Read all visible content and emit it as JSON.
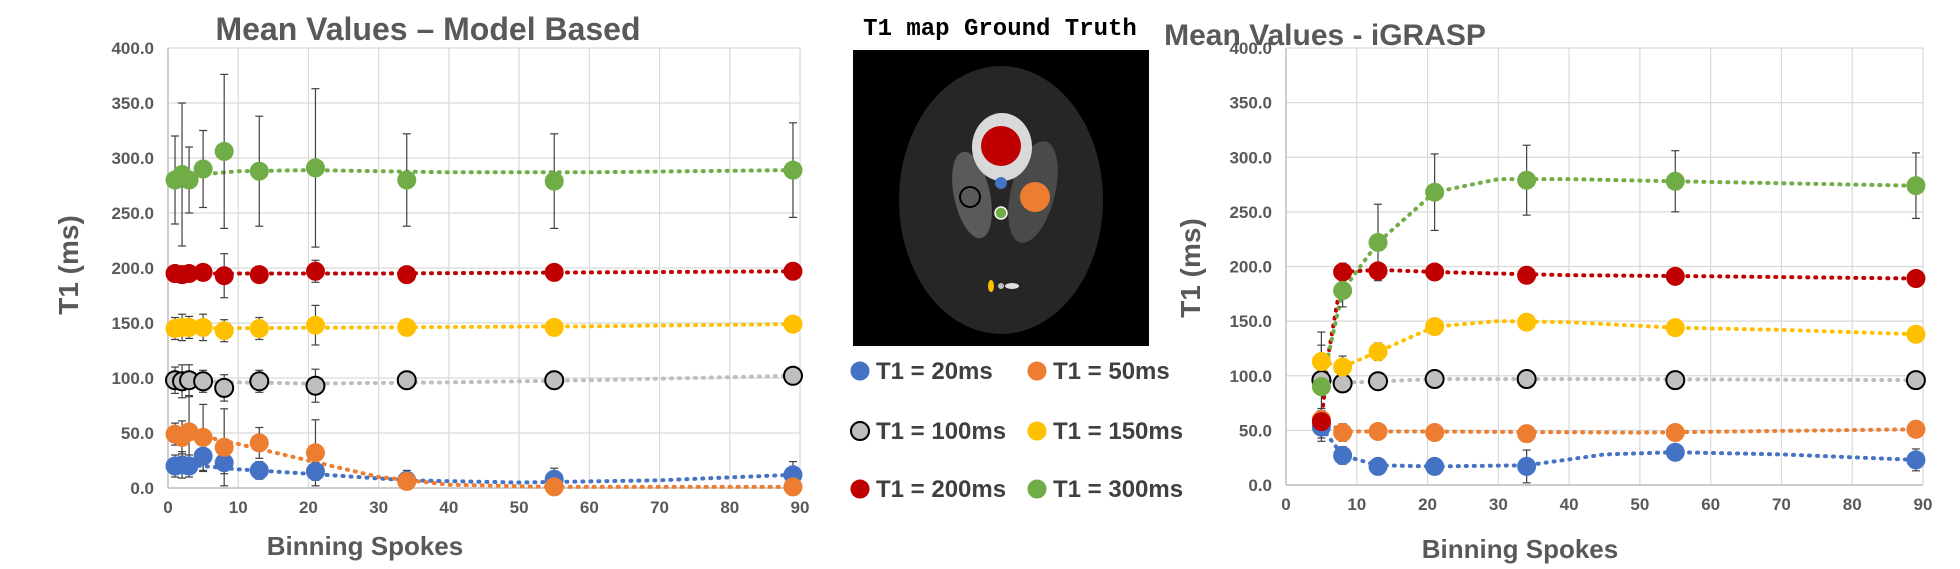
{
  "chart_data": [
    {
      "type": "scatter",
      "title": "Mean Values – Model Based",
      "xlabel": "Binning Spokes",
      "ylabel": "T1 (ms)",
      "xlim": [
        0,
        90
      ],
      "ylim": [
        0,
        400
      ],
      "xticks": [
        "0",
        "10",
        "20",
        "30",
        "40",
        "50",
        "60",
        "70",
        "80",
        "90"
      ],
      "yticks": [
        "0.0",
        "50.0",
        "100.0",
        "150.0",
        "200.0",
        "250.0",
        "300.0",
        "350.0",
        "400.0"
      ],
      "grid": true,
      "series": [
        {
          "name": "T1 = 20ms",
          "color": "#4472C4",
          "x": [
            1,
            2,
            3,
            5,
            8,
            13,
            21,
            34,
            55,
            89
          ],
          "y": [
            20,
            21,
            20,
            29,
            23,
            16,
            15,
            7,
            8,
            12
          ],
          "err": [
            10,
            12,
            10,
            14,
            10,
            8,
            8,
            5,
            10,
            12
          ],
          "trend": [
            [
              1,
              22
            ],
            [
              5,
              20
            ],
            [
              10,
              17
            ],
            [
              20,
              13
            ],
            [
              34,
              7
            ],
            [
              50,
              5
            ],
            [
              70,
              7
            ],
            [
              89,
              12
            ]
          ]
        },
        {
          "name": "T1 = 50ms",
          "color": "#ED7D31",
          "x": [
            1,
            2,
            3,
            5,
            8,
            13,
            21,
            34,
            55,
            89
          ],
          "y": [
            49,
            46,
            51,
            46,
            37,
            41,
            32,
            6,
            1,
            1
          ],
          "err": [
            10,
            15,
            32,
            30,
            35,
            14,
            30,
            10,
            4,
            4
          ],
          "trend": [
            [
              1,
              50
            ],
            [
              5,
              47
            ],
            [
              10,
              40
            ],
            [
              20,
              25
            ],
            [
              30,
              10
            ],
            [
              40,
              3
            ],
            [
              55,
              1
            ],
            [
              89,
              1
            ]
          ]
        },
        {
          "name": "T1 = 100ms",
          "color": "#BFBFBF",
          "x": [
            1,
            2,
            3,
            5,
            8,
            13,
            21,
            34,
            55,
            89
          ],
          "y": [
            98,
            97,
            98,
            97,
            91,
            97,
            93,
            98,
            98,
            102
          ],
          "err": [
            12,
            15,
            14,
            10,
            12,
            10,
            15,
            8,
            8,
            6
          ],
          "trend": [
            [
              1,
              98
            ],
            [
              10,
              96
            ],
            [
              20,
              95
            ],
            [
              40,
              96
            ],
            [
              60,
              98
            ],
            [
              89,
              102
            ]
          ]
        },
        {
          "name": "T1 = 150ms",
          "color": "#FFC000",
          "x": [
            1,
            2,
            3,
            5,
            8,
            13,
            21,
            34,
            55,
            89
          ],
          "y": [
            145,
            146,
            146,
            146,
            143,
            145,
            148,
            146,
            146,
            149
          ],
          "err": [
            10,
            12,
            10,
            12,
            10,
            10,
            18,
            6,
            5,
            5
          ],
          "trend": [
            [
              1,
              145
            ],
            [
              30,
              146
            ],
            [
              60,
              147
            ],
            [
              89,
              149
            ]
          ]
        },
        {
          "name": "T1 = 200ms",
          "color": "#C00000",
          "x": [
            1,
            2,
            3,
            5,
            8,
            13,
            21,
            34,
            55,
            89
          ],
          "y": [
            195,
            194,
            195,
            196,
            193,
            194,
            197,
            194,
            196,
            197
          ],
          "err": [
            5,
            5,
            5,
            5,
            20,
            5,
            10,
            5,
            4,
            4
          ],
          "trend": [
            [
              1,
              195
            ],
            [
              30,
              195
            ],
            [
              60,
              196
            ],
            [
              89,
              197
            ]
          ]
        },
        {
          "name": "T1 = 300ms",
          "color": "#70AD47",
          "x": [
            1,
            2,
            3,
            5,
            8,
            13,
            21,
            34,
            55,
            89
          ],
          "y": [
            280,
            285,
            280,
            290,
            306,
            288,
            291,
            280,
            279,
            289
          ],
          "err": [
            40,
            65,
            30,
            35,
            70,
            50,
            72,
            42,
            43,
            43
          ],
          "trend": [
            [
              1,
              283
            ],
            [
              10,
              288
            ],
            [
              20,
              289
            ],
            [
              40,
              287
            ],
            [
              60,
              287
            ],
            [
              89,
              289
            ]
          ]
        }
      ]
    },
    {
      "type": "scatter",
      "title": "Mean Values - iGRASP",
      "xlabel": "Binning Spokes",
      "ylabel": "T1 (ms)",
      "xlim": [
        0,
        90
      ],
      "ylim": [
        0,
        400
      ],
      "xticks": [
        "0",
        "10",
        "20",
        "30",
        "40",
        "50",
        "60",
        "70",
        "80",
        "90"
      ],
      "yticks": [
        "0.0",
        "50.0",
        "100.0",
        "150.0",
        "200.0",
        "250.0",
        "300.0",
        "350.0",
        "400.0"
      ],
      "grid": true,
      "series": [
        {
          "name": "T1 = 20ms",
          "color": "#4472C4",
          "x": [
            5,
            8,
            13,
            21,
            34,
            55,
            89
          ],
          "y": [
            53,
            27,
            17,
            17,
            17,
            30,
            23
          ],
          "err": [
            10,
            8,
            6,
            7,
            15,
            5,
            10
          ],
          "trend": [
            [
              5,
              53
            ],
            [
              8,
              27
            ],
            [
              13,
              18
            ],
            [
              21,
              17
            ],
            [
              34,
              18
            ],
            [
              45,
              28
            ],
            [
              55,
              30
            ],
            [
              70,
              28
            ],
            [
              89,
              23
            ]
          ]
        },
        {
          "name": "T1 = 50ms",
          "color": "#ED7D31",
          "x": [
            5,
            8,
            13,
            21,
            34,
            55,
            89
          ],
          "y": [
            60,
            48,
            49,
            48,
            47,
            48,
            51
          ],
          "err": [
            10,
            8,
            5,
            5,
            5,
            4,
            4
          ],
          "trend": [
            [
              5,
              60
            ],
            [
              8,
              49
            ],
            [
              20,
              49
            ],
            [
              50,
              48
            ],
            [
              89,
              51
            ]
          ]
        },
        {
          "name": "T1 = 100ms",
          "color": "#BFBFBF",
          "x": [
            5,
            8,
            13,
            21,
            34,
            55,
            89
          ],
          "y": [
            96,
            93,
            95,
            97,
            97,
            96,
            96
          ],
          "err": [
            12,
            8,
            6,
            5,
            5,
            4,
            4
          ],
          "trend": [
            [
              5,
              96
            ],
            [
              10,
              94
            ],
            [
              21,
              97
            ],
            [
              40,
              97
            ],
            [
              89,
              96
            ]
          ]
        },
        {
          "name": "T1 = 150ms",
          "color": "#FFC000",
          "x": [
            5,
            8,
            13,
            21,
            34,
            55,
            89
          ],
          "y": [
            113,
            108,
            122,
            145,
            149,
            144,
            138
          ],
          "err": [
            15,
            10,
            8,
            6,
            5,
            5,
            6
          ],
          "trend": [
            [
              5,
              113
            ],
            [
              8,
              108
            ],
            [
              13,
              122
            ],
            [
              21,
              145
            ],
            [
              30,
              150
            ],
            [
              40,
              149
            ],
            [
              55,
              144
            ],
            [
              70,
              142
            ],
            [
              89,
              138
            ]
          ]
        },
        {
          "name": "T1 = 200ms",
          "color": "#C00000",
          "x": [
            5,
            8,
            13,
            21,
            34,
            55,
            89
          ],
          "y": [
            58,
            195,
            196,
            195,
            192,
            191,
            189
          ],
          "err": [
            10,
            8,
            5,
            5,
            5,
            4,
            4
          ],
          "trend": [
            [
              5,
              58
            ],
            [
              6,
              120
            ],
            [
              8,
              195
            ],
            [
              13,
              197
            ],
            [
              21,
              195
            ],
            [
              40,
              192
            ],
            [
              60,
              191
            ],
            [
              89,
              189
            ]
          ]
        },
        {
          "name": "T1 = 300ms",
          "color": "#70AD47",
          "x": [
            5,
            8,
            13,
            21,
            34,
            55,
            89
          ],
          "y": [
            90,
            178,
            222,
            268,
            279,
            278,
            274
          ],
          "err": [
            50,
            15,
            35,
            35,
            32,
            28,
            30
          ],
          "trend": [
            [
              5,
              90
            ],
            [
              8,
              178
            ],
            [
              13,
              222
            ],
            [
              21,
              268
            ],
            [
              30,
              280
            ],
            [
              40,
              280
            ],
            [
              55,
              278
            ],
            [
              89,
              274
            ]
          ]
        }
      ]
    }
  ],
  "ground_truth": {
    "title": "T1 map Ground Truth",
    "legend": [
      "T1 = 20ms",
      "T1 = 50ms",
      "T1 = 100ms",
      "T1 = 150ms",
      "T1 = 200ms",
      "T1 = 300ms"
    ],
    "legend_colors": [
      "#4472C4",
      "#ED7D31",
      "#BFBFBF",
      "#FFC000",
      "#C00000",
      "#70AD47"
    ]
  }
}
